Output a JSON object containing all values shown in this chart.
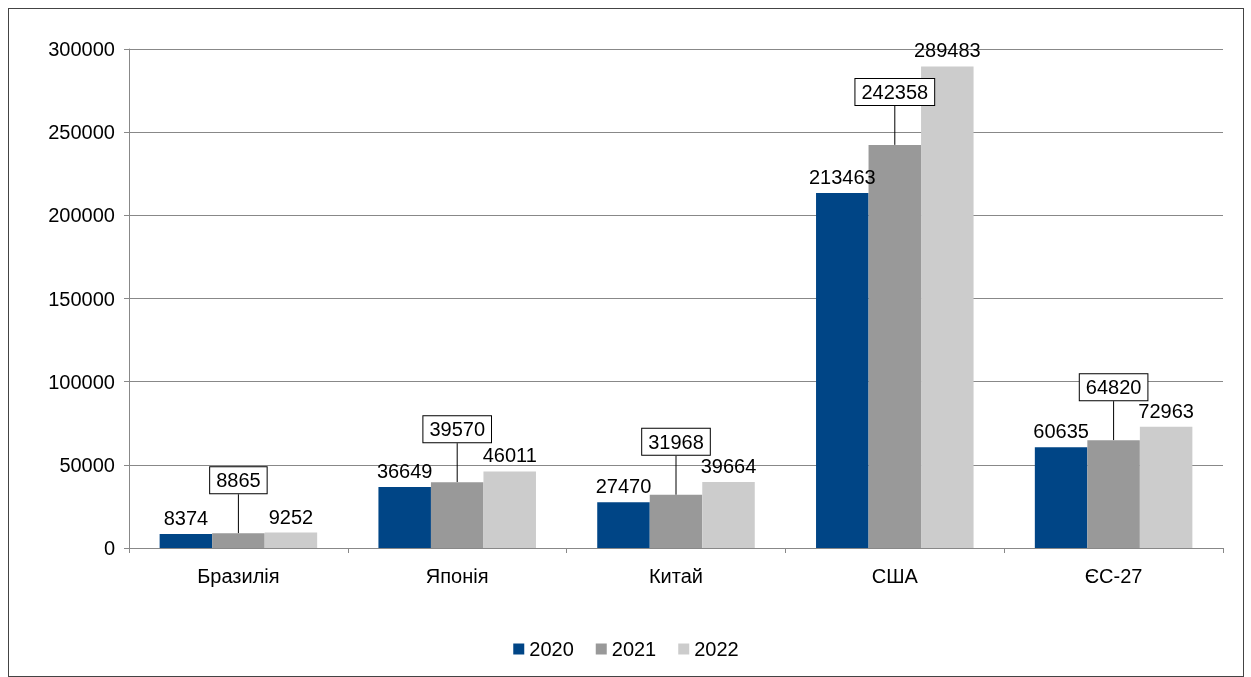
{
  "chart_data": {
    "type": "bar",
    "categories": [
      "Бразилія",
      "Японія",
      "Китай",
      "США",
      "ЄС-27"
    ],
    "series": [
      {
        "name": "2020",
        "color": "#004586",
        "values": [
          8374,
          36649,
          27470,
          213463,
          60635
        ]
      },
      {
        "name": "2021",
        "color": "#999999",
        "values": [
          8865,
          39570,
          31968,
          242358,
          64820
        ]
      },
      {
        "name": "2022",
        "color": "#cccccc",
        "values": [
          9252,
          46011,
          39664,
          289483,
          72963
        ]
      }
    ],
    "ylim": [
      0,
      300000
    ],
    "yticks": [
      0,
      50000,
      100000,
      150000,
      200000,
      250000,
      300000
    ],
    "grid": "y",
    "legend": "bottom",
    "data_labels": true
  }
}
